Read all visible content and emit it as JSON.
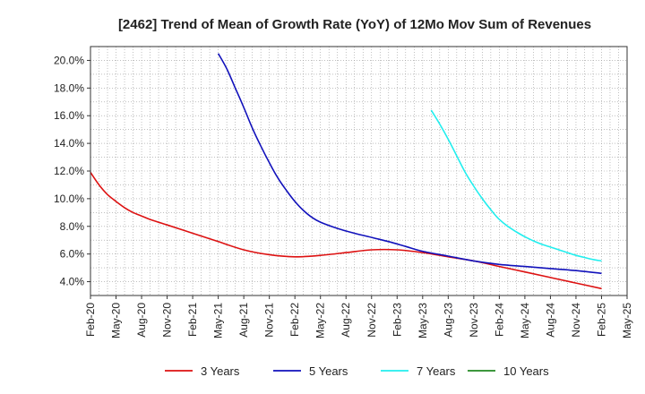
{
  "chart_data": {
    "type": "line",
    "title": "[2462]  Trend of Mean of Growth Rate (YoY) of 12Mo Mov Sum of Revenues",
    "xlabel": "",
    "ylabel": "",
    "ylim": [
      3.0,
      21.0
    ],
    "y_ticks": [
      4.0,
      6.0,
      8.0,
      10.0,
      12.0,
      14.0,
      16.0,
      18.0,
      20.0
    ],
    "y_tick_labels": [
      "4.0%",
      "6.0%",
      "8.0%",
      "10.0%",
      "12.0%",
      "14.0%",
      "16.0%",
      "18.0%",
      "20.0%"
    ],
    "x_range": [
      0,
      63
    ],
    "x_tick_labels": [
      "Feb-20",
      "May-20",
      "Aug-20",
      "Nov-20",
      "Feb-21",
      "May-21",
      "Aug-21",
      "Nov-21",
      "Feb-22",
      "May-22",
      "Aug-22",
      "Nov-22",
      "Feb-23",
      "May-23",
      "Aug-23",
      "Nov-23",
      "Feb-24",
      "May-24",
      "Aug-24",
      "Nov-24",
      "Feb-25",
      "May-25"
    ],
    "grid": true,
    "series": [
      {
        "name": "3 Years",
        "color": "#dd1111",
        "points": [
          [
            0,
            11.9
          ],
          [
            1,
            11.0
          ],
          [
            2,
            10.3
          ],
          [
            3,
            9.8
          ],
          [
            4,
            9.35
          ],
          [
            5,
            9.0
          ],
          [
            6,
            8.75
          ],
          [
            7,
            8.5
          ],
          [
            9,
            8.1
          ],
          [
            12,
            7.5
          ],
          [
            15,
            6.9
          ],
          [
            18,
            6.3
          ],
          [
            21,
            5.95
          ],
          [
            24,
            5.8
          ],
          [
            27,
            5.9
          ],
          [
            30,
            6.1
          ],
          [
            33,
            6.3
          ],
          [
            36,
            6.3
          ],
          [
            39,
            6.1
          ],
          [
            42,
            5.8
          ],
          [
            45,
            5.5
          ],
          [
            48,
            5.1
          ],
          [
            51,
            4.7
          ],
          [
            54,
            4.3
          ],
          [
            57,
            3.9
          ],
          [
            60,
            3.5
          ]
        ]
      },
      {
        "name": "5 Years",
        "color": "#1111bb",
        "points": [
          [
            15,
            20.5
          ],
          [
            16,
            19.4
          ],
          [
            17,
            18.0
          ],
          [
            18,
            16.6
          ],
          [
            19,
            15.1
          ],
          [
            20,
            13.8
          ],
          [
            21,
            12.6
          ],
          [
            22,
            11.5
          ],
          [
            23,
            10.6
          ],
          [
            24,
            9.8
          ],
          [
            25,
            9.15
          ],
          [
            26,
            8.65
          ],
          [
            27,
            8.3
          ],
          [
            29,
            7.85
          ],
          [
            31,
            7.5
          ],
          [
            33,
            7.2
          ],
          [
            35,
            6.9
          ],
          [
            37,
            6.55
          ],
          [
            39,
            6.2
          ],
          [
            42,
            5.85
          ],
          [
            45,
            5.5
          ],
          [
            48,
            5.25
          ],
          [
            51,
            5.1
          ],
          [
            54,
            4.95
          ],
          [
            57,
            4.8
          ],
          [
            60,
            4.6
          ]
        ]
      },
      {
        "name": "7 Years",
        "color": "#22eeee",
        "points": [
          [
            40,
            16.4
          ],
          [
            41,
            15.4
          ],
          [
            42,
            14.3
          ],
          [
            43,
            13.1
          ],
          [
            44,
            11.9
          ],
          [
            45,
            10.9
          ],
          [
            46,
            10.0
          ],
          [
            47,
            9.2
          ],
          [
            48,
            8.5
          ],
          [
            49,
            8.0
          ],
          [
            50,
            7.6
          ],
          [
            51,
            7.25
          ],
          [
            52,
            6.95
          ],
          [
            53,
            6.7
          ],
          [
            54,
            6.5
          ],
          [
            55,
            6.3
          ],
          [
            56,
            6.1
          ],
          [
            57,
            5.9
          ],
          [
            58,
            5.75
          ],
          [
            59,
            5.6
          ],
          [
            60,
            5.5
          ]
        ]
      },
      {
        "name": "10 Years",
        "color": "#228822",
        "points": []
      }
    ]
  }
}
